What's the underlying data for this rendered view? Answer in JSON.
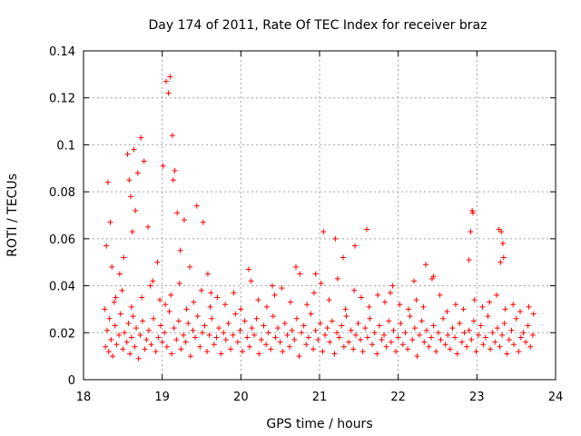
{
  "chart_data": {
    "type": "scatter",
    "title": "Day 174 of 2011, Rate Of TEC Index for receiver braz",
    "xlabel": "GPS time / hours",
    "ylabel": "ROTI / TECUs",
    "xlim": [
      18,
      24
    ],
    "ylim": [
      0,
      0.14
    ],
    "xticks": [
      "18",
      "19",
      "20",
      "21",
      "22",
      "23",
      "24"
    ],
    "yticks": [
      "0",
      "0.02",
      "0.04",
      "0.06",
      "0.08",
      "0.1",
      "0.12",
      "0.14"
    ],
    "grid": true,
    "marker": "+",
    "color": "#ff0000",
    "series": [
      {
        "x": [
          18.28,
          18.3,
          18.32,
          18.33,
          18.35,
          18.37,
          18.4,
          18.42,
          18.45,
          18.47,
          18.5,
          18.52,
          18.55,
          18.57,
          18.59,
          18.61,
          18.63,
          18.65,
          18.67,
          18.7,
          18.72,
          18.75,
          18.78,
          18.8,
          18.83,
          18.86,
          18.89,
          18.92,
          18.95,
          18.98,
          19.0,
          19.03,
          19.06,
          19.09,
          19.12,
          19.15,
          19.18,
          19.21,
          19.24,
          19.27,
          19.3,
          19.33,
          19.36,
          19.39,
          19.42,
          19.45,
          19.48,
          19.51,
          19.54,
          19.57,
          19.6,
          19.63,
          19.66,
          19.69,
          19.72,
          19.75,
          19.78,
          19.81,
          19.84,
          19.87,
          19.9,
          19.93,
          19.96,
          19.99,
          20.02,
          20.05,
          20.08,
          20.11,
          20.14,
          20.17,
          20.2,
          20.23,
          20.26,
          20.29,
          20.32,
          20.35,
          20.38,
          20.41,
          20.44,
          20.47,
          20.5,
          20.53,
          20.56,
          20.59,
          20.62,
          20.65,
          20.68,
          20.71,
          20.74,
          20.77,
          20.8,
          20.83,
          20.86,
          20.89,
          20.92,
          20.95,
          20.98,
          21.01,
          21.04,
          21.07,
          21.1,
          21.13,
          21.16,
          21.19,
          21.22,
          21.25,
          21.28,
          21.31,
          21.34,
          21.37,
          21.4,
          21.43,
          21.46,
          21.49,
          21.52,
          21.55,
          21.58,
          21.61,
          21.64,
          21.67,
          21.7,
          21.73,
          21.76,
          21.79,
          21.82,
          21.85,
          21.88,
          21.91,
          21.94,
          21.97,
          22.0,
          22.03,
          22.06,
          22.09,
          22.12,
          22.15,
          22.18,
          22.21,
          22.24,
          22.27,
          22.3,
          22.33,
          22.36,
          22.39,
          22.42,
          22.45,
          22.48,
          22.51,
          22.54,
          22.57,
          22.6,
          22.63,
          22.66,
          22.69,
          22.72,
          22.75,
          22.78,
          22.81,
          22.84,
          22.87,
          22.9,
          22.93,
          22.96,
          22.99,
          23.02,
          23.05,
          23.08,
          23.11,
          23.14,
          23.17,
          23.2,
          23.23,
          23.26,
          23.29,
          23.32,
          23.35,
          23.38,
          23.41,
          23.44,
          23.47,
          23.5,
          23.53,
          23.56,
          23.59,
          23.62,
          23.65,
          23.68,
          23.71,
          18.29,
          18.31,
          18.34,
          18.36,
          18.41,
          18.46,
          18.51,
          18.56,
          18.58,
          18.6,
          18.62,
          18.64,
          18.66,
          18.69,
          18.73,
          18.77,
          18.82,
          18.88,
          18.94,
          19.01,
          19.05,
          19.08,
          19.1,
          19.13,
          19.14,
          19.16,
          19.19,
          19.23,
          19.28,
          19.35,
          19.44,
          19.52,
          19.58,
          19.62,
          20.1,
          20.4,
          20.7,
          20.95,
          21.05,
          21.2,
          21.3,
          21.45,
          21.6,
          21.9,
          22.2,
          22.35,
          22.45,
          22.9,
          22.92,
          22.94,
          22.95,
          23.28,
          23.3,
          23.31,
          23.33,
          23.34,
          18.27,
          18.39,
          18.49,
          18.61,
          18.74,
          18.85,
          18.97,
          19.04,
          19.11,
          19.22,
          19.31,
          19.4,
          19.5,
          19.61,
          19.7,
          19.8,
          19.91,
          20.0,
          20.13,
          20.22,
          20.33,
          20.43,
          20.52,
          20.63,
          20.75,
          20.84,
          20.93,
          21.02,
          21.12,
          21.23,
          21.33,
          21.44,
          21.53,
          21.63,
          21.74,
          21.83,
          21.93,
          22.02,
          22.13,
          22.23,
          22.32,
          22.43,
          22.53,
          22.62,
          22.73,
          22.83,
          22.97,
          23.07,
          23.16,
          23.25,
          23.36,
          23.46,
          23.55,
          23.66,
          23.72
        ],
        "y": [
          0.014,
          0.021,
          0.012,
          0.026,
          0.017,
          0.01,
          0.023,
          0.015,
          0.019,
          0.028,
          0.013,
          0.02,
          0.016,
          0.024,
          0.011,
          0.018,
          0.027,
          0.014,
          0.022,
          0.009,
          0.019,
          0.025,
          0.013,
          0.017,
          0.021,
          0.015,
          0.026,
          0.012,
          0.018,
          0.023,
          0.016,
          0.02,
          0.014,
          0.029,
          0.011,
          0.022,
          0.017,
          0.025,
          0.013,
          0.019,
          0.016,
          0.024,
          0.01,
          0.021,
          0.018,
          0.027,
          0.014,
          0.02,
          0.023,
          0.012,
          0.019,
          0.026,
          0.015,
          0.018,
          0.022,
          0.011,
          0.02,
          0.017,
          0.024,
          0.013,
          0.019,
          0.028,
          0.016,
          0.021,
          0.012,
          0.025,
          0.018,
          0.014,
          0.022,
          0.019,
          0.026,
          0.011,
          0.017,
          0.023,
          0.015,
          0.02,
          0.013,
          0.027,
          0.018,
          0.022,
          0.016,
          0.012,
          0.024,
          0.019,
          0.014,
          0.021,
          0.017,
          0.026,
          0.01,
          0.02,
          0.023,
          0.015,
          0.018,
          0.028,
          0.013,
          0.021,
          0.017,
          0.024,
          0.012,
          0.019,
          0.022,
          0.016,
          0.025,
          0.011,
          0.02,
          0.018,
          0.023,
          0.014,
          0.027,
          0.016,
          0.021,
          0.013,
          0.019,
          0.024,
          0.017,
          0.012,
          0.022,
          0.018,
          0.026,
          0.015,
          0.02,
          0.011,
          0.023,
          0.017,
          0.019,
          0.014,
          0.025,
          0.016,
          0.021,
          0.012,
          0.018,
          0.024,
          0.015,
          0.02,
          0.013,
          0.027,
          0.017,
          0.022,
          0.01,
          0.019,
          0.025,
          0.016,
          0.021,
          0.014,
          0.018,
          0.023,
          0.012,
          0.02,
          0.017,
          0.026,
          0.015,
          0.019,
          0.013,
          0.022,
          0.018,
          0.011,
          0.024,
          0.016,
          0.02,
          0.014,
          0.021,
          0.017,
          0.025,
          0.012,
          0.019,
          0.023,
          0.015,
          0.018,
          0.027,
          0.013,
          0.02,
          0.016,
          0.022,
          0.014,
          0.019,
          0.024,
          0.011,
          0.017,
          0.021,
          0.015,
          0.026,
          0.012,
          0.018,
          0.02,
          0.016,
          0.023,
          0.014,
          0.019,
          0.057,
          0.084,
          0.067,
          0.048,
          0.035,
          0.045,
          0.052,
          0.096,
          0.085,
          0.078,
          0.063,
          0.098,
          0.072,
          0.088,
          0.103,
          0.093,
          0.065,
          0.042,
          0.05,
          0.091,
          0.127,
          0.122,
          0.129,
          0.104,
          0.085,
          0.089,
          0.071,
          0.055,
          0.068,
          0.048,
          0.074,
          0.067,
          0.045,
          0.037,
          0.047,
          0.04,
          0.048,
          0.045,
          0.063,
          0.06,
          0.052,
          0.057,
          0.064,
          0.037,
          0.042,
          0.049,
          0.044,
          0.051,
          0.063,
          0.072,
          0.071,
          0.064,
          0.05,
          0.063,
          0.058,
          0.052,
          0.03,
          0.033,
          0.038,
          0.031,
          0.035,
          0.04,
          0.034,
          0.032,
          0.036,
          0.041,
          0.03,
          0.033,
          0.038,
          0.031,
          0.035,
          0.032,
          0.037,
          0.03,
          0.042,
          0.034,
          0.031,
          0.036,
          0.039,
          0.033,
          0.045,
          0.032,
          0.037,
          0.041,
          0.034,
          0.043,
          0.03,
          0.038,
          0.035,
          0.031,
          0.036,
          0.033,
          0.04,
          0.032,
          0.03,
          0.034,
          0.031,
          0.043,
          0.036,
          0.029,
          0.032,
          0.03,
          0.034,
          0.031,
          0.033,
          0.036,
          0.03,
          0.032,
          0.029,
          0.031,
          0.028
        ]
      }
    ]
  }
}
